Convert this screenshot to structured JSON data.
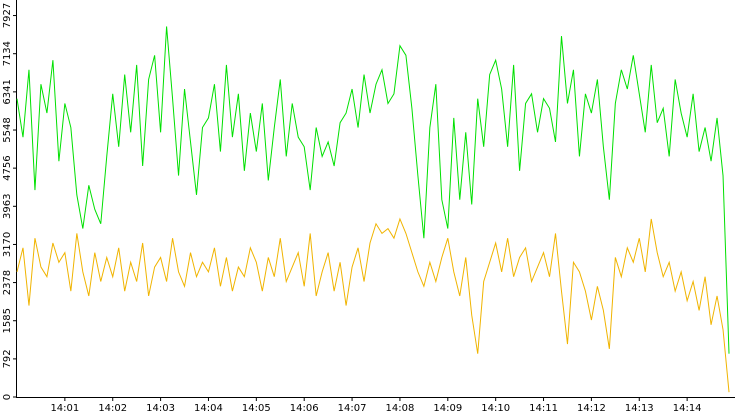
{
  "chart_data": {
    "type": "line",
    "x": [
      0,
      0.125,
      0.25,
      0.375,
      0.5,
      0.625,
      0.75,
      0.875,
      1,
      1.125,
      1.25,
      1.375,
      1.5,
      1.625,
      1.75,
      1.875,
      2,
      2.125,
      2.25,
      2.375,
      2.5,
      2.625,
      2.75,
      2.875,
      3,
      3.125,
      3.25,
      3.375,
      3.5,
      3.625,
      3.75,
      3.875,
      4,
      4.125,
      4.25,
      4.375,
      4.5,
      4.625,
      4.75,
      4.875,
      5,
      5.125,
      5.25,
      5.375,
      5.5,
      5.625,
      5.75,
      5.875,
      6,
      6.125,
      6.25,
      6.375,
      6.5,
      6.625,
      6.75,
      6.875,
      7,
      7.125,
      7.25,
      7.375,
      7.5,
      7.625,
      7.75,
      7.875,
      8,
      8.125,
      8.25,
      8.375,
      8.5,
      8.625,
      8.75,
      8.875,
      9,
      9.125,
      9.25,
      9.375,
      9.5,
      9.625,
      9.75,
      9.875,
      10,
      10.125,
      10.25,
      10.375,
      10.5,
      10.625,
      10.75,
      10.875,
      11,
      11.125,
      11.25,
      11.375,
      11.5,
      11.625,
      11.75,
      11.875,
      12,
      12.125,
      12.25,
      12.375,
      12.5,
      12.625,
      12.75,
      12.875,
      13,
      13.125,
      13.25,
      13.375,
      13.5,
      13.625,
      13.75,
      13.875,
      14,
      14.125,
      14.25,
      14.375,
      14.5,
      14.625,
      14.75,
      14.875
    ],
    "series": [
      {
        "color": "#00e000",
        "values": [
          6200,
          5400,
          6800,
          4300,
          6500,
          5900,
          7000,
          4900,
          6100,
          5600,
          4200,
          3500,
          4400,
          3900,
          3600,
          5000,
          6300,
          5200,
          6700,
          5500,
          6900,
          4800,
          6600,
          7100,
          5500,
          7700,
          6200,
          4600,
          6400,
          5300,
          4200,
          5600,
          5800,
          6500,
          5100,
          6900,
          5400,
          6300,
          4700,
          5900,
          5100,
          6100,
          4500,
          5600,
          6600,
          5000,
          6100,
          5400,
          5200,
          4300,
          5600,
          5000,
          5300,
          4800,
          5700,
          5900,
          6400,
          5600,
          6700,
          5900,
          6500,
          6800,
          6100,
          6300,
          7300,
          7100,
          6000,
          4600,
          3300,
          5600,
          6500,
          4100,
          3500,
          5800,
          4100,
          5500,
          4000,
          6200,
          5200,
          6700,
          7000,
          6400,
          5200,
          6900,
          4700,
          6100,
          6300,
          5500,
          6200,
          6000,
          5300,
          7500,
          6100,
          6800,
          5000,
          6300,
          5900,
          6600,
          5200,
          4100,
          6100,
          6800,
          6400,
          7100,
          6300,
          5500,
          6900,
          5700,
          6000,
          5000,
          6600,
          5900,
          5400,
          6300,
          5100,
          5600,
          4900,
          5800,
          4600,
          900
        ]
      },
      {
        "color": "#f0b400",
        "values": [
          2600,
          3100,
          1900,
          3300,
          2700,
          2500,
          3200,
          2800,
          3000,
          2200,
          3400,
          2600,
          2100,
          3000,
          2400,
          2900,
          2500,
          3100,
          2200,
          2800,
          2400,
          3200,
          2100,
          2700,
          2900,
          2400,
          3300,
          2600,
          2300,
          3000,
          2500,
          2800,
          2600,
          3100,
          2300,
          2900,
          2200,
          2700,
          2500,
          3100,
          2800,
          2200,
          2900,
          2500,
          3300,
          2400,
          2700,
          3000,
          2300,
          3400,
          2100,
          2600,
          3000,
          2200,
          2800,
          1900,
          2700,
          3100,
          2400,
          3200,
          3600,
          3400,
          3500,
          3300,
          3700,
          3400,
          3000,
          2600,
          2300,
          2800,
          2400,
          2900,
          3300,
          2600,
          2100,
          2900,
          1700,
          900,
          2400,
          2800,
          3200,
          2600,
          3300,
          2500,
          2900,
          3100,
          2400,
          2700,
          3000,
          2500,
          3400,
          2200,
          1100,
          2800,
          2600,
          2200,
          1600,
          2300,
          1800,
          1000,
          2900,
          2500,
          3100,
          2800,
          3300,
          2600,
          3700,
          3000,
          2500,
          2800,
          2200,
          2600,
          2000,
          2400,
          1800,
          2500,
          1500,
          2100,
          1400,
          100
        ]
      }
    ],
    "xlim": [
      0,
      15
    ],
    "xticks": [
      {
        "value": 1,
        "label": "14:01"
      },
      {
        "value": 2,
        "label": "14:02"
      },
      {
        "value": 3,
        "label": "14:03"
      },
      {
        "value": 4,
        "label": "14:04"
      },
      {
        "value": 5,
        "label": "14:05"
      },
      {
        "value": 6,
        "label": "14:06"
      },
      {
        "value": 7,
        "label": "14:07"
      },
      {
        "value": 8,
        "label": "14:08"
      },
      {
        "value": 9,
        "label": "14:09"
      },
      {
        "value": 10,
        "label": "14:10"
      },
      {
        "value": 11,
        "label": "14:11"
      },
      {
        "value": 12,
        "label": "14:12"
      },
      {
        "value": 13,
        "label": "14:13"
      },
      {
        "value": 14,
        "label": "14:14"
      }
    ],
    "ylim": [
      0,
      8250
    ],
    "yticks": [
      0,
      792,
      1585,
      2378,
      3170,
      3963,
      4756,
      5548,
      6341,
      7134,
      7927
    ]
  }
}
